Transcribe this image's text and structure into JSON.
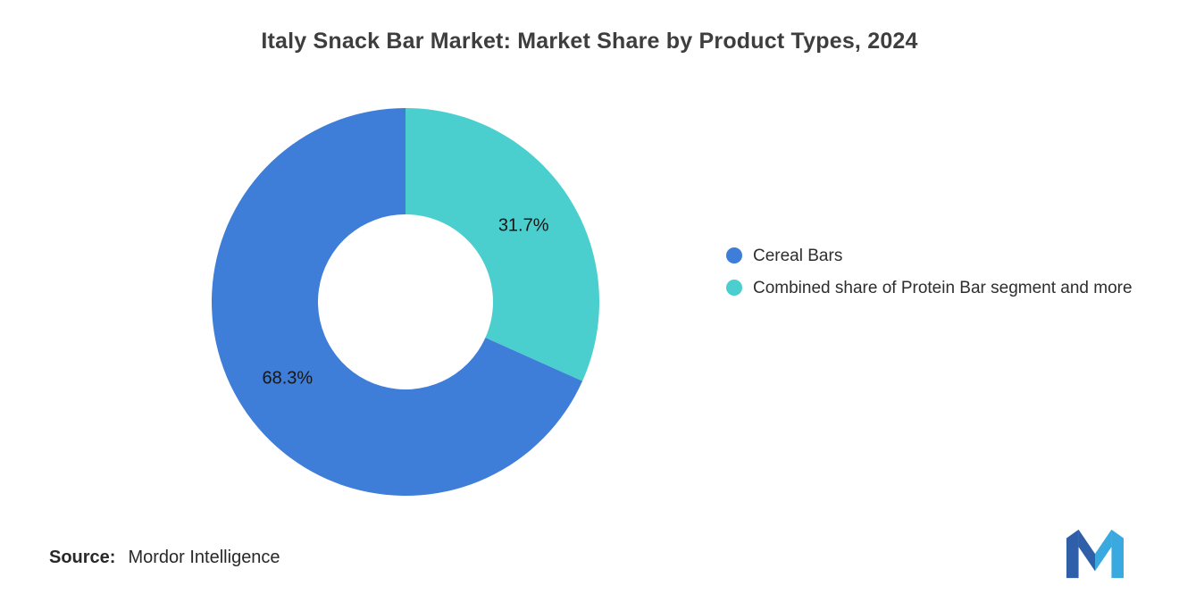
{
  "chart_data": {
    "type": "pie",
    "variant": "donut",
    "title": "Italy Snack Bar Market: Market Share by Product Types, 2024",
    "unit": "%",
    "segments": [
      {
        "label": "Cereal Bars",
        "value": 68.3,
        "value_label": "68.3%",
        "color": "#3E7DD8"
      },
      {
        "label": "Combined share of Protein Bar segment and more",
        "value": 31.7,
        "value_label": "31.7%",
        "color": "#4BCFCE"
      }
    ],
    "draw_order": [
      1,
      0
    ],
    "start_angle_deg": 0,
    "direction": "clockwise",
    "inner_radius_ratio": 0.45,
    "labels_inside": true,
    "label_color": "#161616",
    "legend_position": "right",
    "background": "#ffffff"
  },
  "source": {
    "prefix": "Source:",
    "name": "Mordor Intelligence"
  },
  "logo": {
    "name": "mordor-intelligence-logo",
    "glyph_color_dark": "#2F5FA8",
    "glyph_color_light": "#39A9E0"
  }
}
